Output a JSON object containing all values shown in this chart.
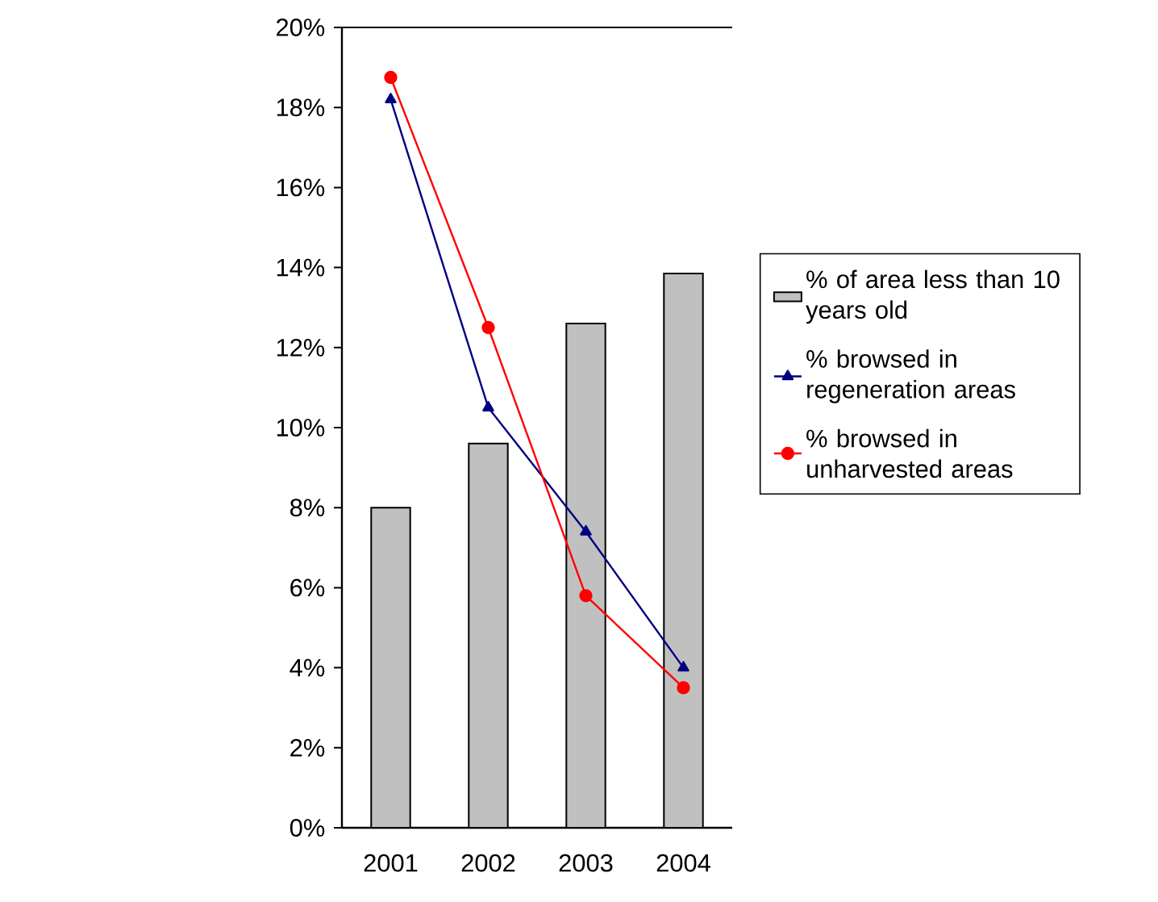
{
  "chart_data": {
    "type": "bar",
    "categories": [
      "2001",
      "2002",
      "2003",
      "2004"
    ],
    "series": [
      {
        "name": "% of area less than 10 years old",
        "color": "#c0c0c0",
        "values": [
          8.0,
          9.6,
          12.6,
          13.85
        ]
      },
      {
        "name": "% browsed in regeneration areas",
        "type": "line",
        "marker": "triangle",
        "color": "#000080",
        "values": [
          18.2,
          10.5,
          7.4,
          4.0
        ]
      },
      {
        "name": "% browsed in unharvested areas",
        "type": "line",
        "marker": "circle",
        "color": "#ff0000",
        "values": [
          18.75,
          12.5,
          5.8,
          3.5
        ]
      }
    ],
    "ylim": [
      0,
      20
    ],
    "yticks": [
      {
        "value": 0,
        "label": "0%"
      },
      {
        "value": 2,
        "label": "2%"
      },
      {
        "value": 4,
        "label": "4%"
      },
      {
        "value": 6,
        "label": "6%"
      },
      {
        "value": 8,
        "label": "8%"
      },
      {
        "value": 10,
        "label": "10%"
      },
      {
        "value": 12,
        "label": "12%"
      },
      {
        "value": 14,
        "label": "14%"
      },
      {
        "value": 16,
        "label": "16%"
      },
      {
        "value": 18,
        "label": "18%"
      },
      {
        "value": 20,
        "label": "20%"
      }
    ],
    "grid": false,
    "legend": "right"
  }
}
